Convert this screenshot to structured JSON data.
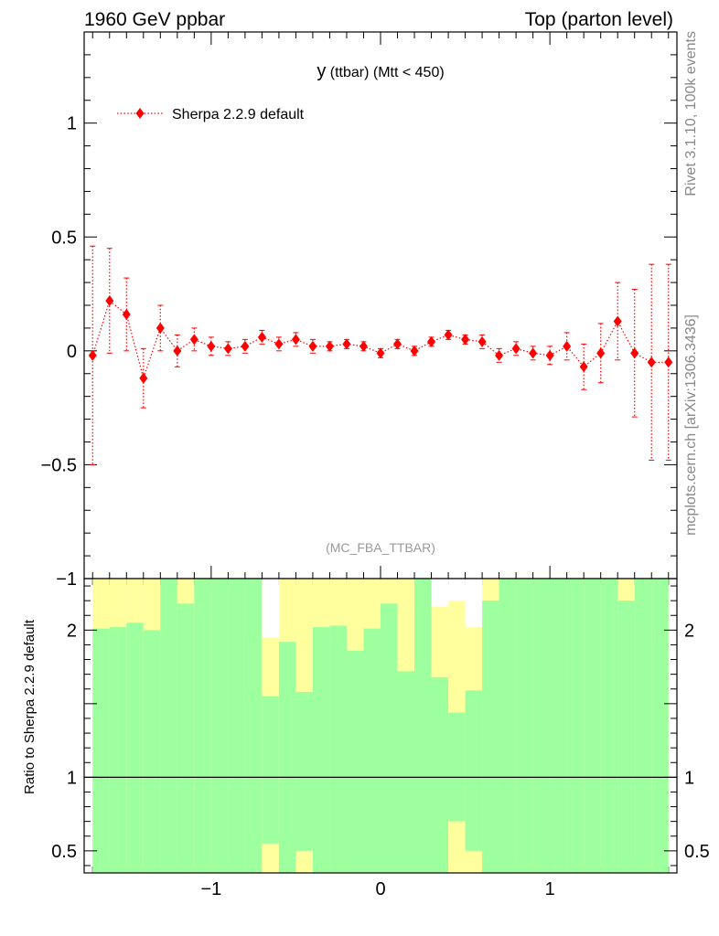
{
  "header": {
    "left": "1960 GeV ppbar",
    "right": "Top (parton level)"
  },
  "side_labels": {
    "rivet": "Rivet 3.1.10,  100k events",
    "mcplots": "mcplots.cern.ch [arXiv:1306.3436]"
  },
  "chart_data": [
    {
      "type": "scatter",
      "title_main": "y",
      "title_rest": " (ttbar) (Mtt < 450)",
      "watermark": "(MC_FBA_TTBAR)",
      "xlim": [
        -1.75,
        1.75
      ],
      "ylim": [
        -1.0,
        1.4
      ],
      "y_ticks": [
        {
          "v": 1,
          "label": "1"
        },
        {
          "v": 0.5,
          "label": "0.5"
        },
        {
          "v": 0,
          "label": "0"
        },
        {
          "v": -0.5,
          "label": "−0.5"
        },
        {
          "v": -1,
          "label": "−1"
        }
      ],
      "legend": "top-left",
      "series": [
        {
          "name": "Sherpa 2.2.9 default",
          "color": "#ff0000",
          "x": [
            -1.7,
            -1.6,
            -1.5,
            -1.4,
            -1.3,
            -1.2,
            -1.1,
            -1.0,
            -0.9,
            -0.8,
            -0.7,
            -0.6,
            -0.5,
            -0.4,
            -0.3,
            -0.2,
            -0.1,
            0.0,
            0.1,
            0.2,
            0.3,
            0.4,
            0.5,
            0.6,
            0.7,
            0.8,
            0.9,
            1.0,
            1.1,
            1.2,
            1.3,
            1.4,
            1.5,
            1.6,
            1.7
          ],
          "y": [
            -0.02,
            0.22,
            0.16,
            -0.12,
            0.1,
            0.0,
            0.05,
            0.02,
            0.01,
            0.02,
            0.06,
            0.03,
            0.05,
            0.02,
            0.02,
            0.03,
            0.02,
            -0.01,
            0.03,
            0.0,
            0.04,
            0.07,
            0.05,
            0.04,
            -0.02,
            0.01,
            -0.01,
            -0.02,
            0.02,
            -0.07,
            -0.01,
            0.13,
            -0.01,
            -0.05,
            -0.05
          ],
          "yerr": [
            0.48,
            0.23,
            0.16,
            0.13,
            0.1,
            0.07,
            0.05,
            0.04,
            0.03,
            0.03,
            0.03,
            0.03,
            0.03,
            0.03,
            0.02,
            0.02,
            0.02,
            0.02,
            0.02,
            0.02,
            0.02,
            0.02,
            0.02,
            0.03,
            0.03,
            0.03,
            0.03,
            0.04,
            0.06,
            0.1,
            0.13,
            0.17,
            0.28,
            0.43,
            0.43
          ]
        }
      ]
    },
    {
      "type": "bar",
      "ylabel": "Ratio to Sherpa 2.2.9 default",
      "xlim": [
        -1.75,
        1.75
      ],
      "ylim": [
        0.35,
        2.35
      ],
      "x_ticks": [
        {
          "v": -1,
          "label": "−1"
        },
        {
          "v": 0,
          "label": "0"
        },
        {
          "v": 1,
          "label": "1"
        }
      ],
      "y_ticks": [
        {
          "v": 2,
          "label": "2"
        },
        {
          "v": 1,
          "label": "1"
        },
        {
          "v": 0.5,
          "label": "0.5"
        }
      ],
      "reference_line": 1,
      "bin_width": 0.1,
      "colors": {
        "inner": "#9dff9d",
        "outer": "#ffff9d"
      },
      "bins_x": [
        -1.65,
        -1.55,
        -1.45,
        -1.35,
        -1.25,
        -1.15,
        -1.05,
        -0.95,
        -0.85,
        -0.75,
        -0.65,
        -0.55,
        -0.45,
        -0.35,
        -0.25,
        -0.15,
        -0.05,
        0.05,
        0.15,
        0.25,
        0.35,
        0.45,
        0.55,
        0.65,
        0.75,
        0.85,
        0.95,
        1.05,
        1.15,
        1.25,
        1.35,
        1.45,
        1.55,
        1.65
      ],
      "inner_high": [
        2.01,
        2.02,
        2.05,
        2.0,
        2.35,
        2.18,
        2.35,
        2.35,
        2.35,
        2.35,
        1.55,
        1.92,
        1.58,
        2.02,
        2.03,
        1.86,
        2.01,
        2.18,
        1.72,
        2.35,
        1.68,
        1.44,
        1.59,
        2.2,
        2.35,
        2.35,
        2.35,
        2.35,
        2.35,
        2.35,
        2.35,
        2.2,
        2.35,
        2.35
      ],
      "outer_high": [
        2.35,
        2.35,
        2.35,
        2.35,
        2.35,
        2.35,
        2.35,
        2.35,
        2.35,
        2.35,
        1.95,
        2.35,
        2.35,
        2.35,
        2.35,
        2.35,
        2.35,
        2.35,
        2.35,
        2.35,
        2.16,
        2.2,
        2.02,
        2.35,
        2.35,
        2.35,
        2.35,
        2.35,
        2.35,
        2.35,
        2.35,
        2.35,
        2.35,
        2.35
      ],
      "inner_low": [
        0.35,
        0.35,
        0.35,
        0.35,
        0.35,
        0.35,
        0.35,
        0.35,
        0.35,
        0.35,
        0.35,
        0.35,
        0.35,
        0.35,
        0.35,
        0.35,
        0.35,
        0.35,
        0.35,
        0.35,
        0.35,
        0.7,
        0.5,
        0.35,
        0.35,
        0.35,
        0.35,
        0.35,
        0.35,
        0.35,
        0.35,
        0.35,
        0.35,
        0.35
      ],
      "outer_low": [
        0.35,
        0.35,
        0.35,
        0.35,
        0.35,
        0.35,
        0.35,
        0.35,
        0.35,
        0.35,
        0.35,
        0.35,
        0.35,
        0.35,
        0.35,
        0.35,
        0.35,
        0.35,
        0.35,
        0.35,
        0.35,
        0.35,
        0.35,
        0.35,
        0.35,
        0.35,
        0.35,
        0.35,
        0.35,
        0.35,
        0.35,
        0.35,
        0.35,
        0.35
      ],
      "yellow_low_tops": [
        0.35,
        0.35,
        0.35,
        0.35,
        0.35,
        0.35,
        0.35,
        0.35,
        0.35,
        0.35,
        0.55,
        0.35,
        0.5,
        0.35,
        0.35,
        0.35,
        0.35,
        0.35,
        0.35,
        0.35,
        0.35,
        0.7,
        0.5,
        0.35,
        0.35,
        0.35,
        0.35,
        0.35,
        0.35,
        0.35,
        0.35,
        0.35,
        0.35,
        0.35
      ]
    }
  ]
}
